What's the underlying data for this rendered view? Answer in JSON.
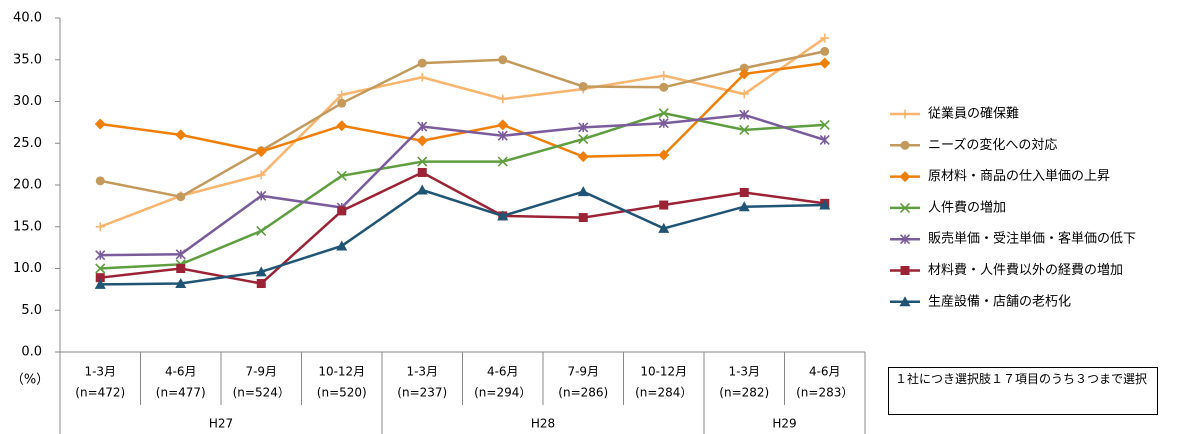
{
  "chart_data": {
    "type": "line",
    "unit_label": "（%）",
    "categories": [
      "1-3月",
      "4-6月",
      "7-9月",
      "10-12月",
      "1-3月",
      "4-6月",
      "7-9月",
      "10-12月",
      "1-3月",
      "4-6月"
    ],
    "category_notes": [
      "(n=472)",
      "(n=477)",
      "(n=524）",
      "(n=520)",
      "(n=237)",
      "(n=294）",
      "(n=286)",
      "(n=284）",
      "(n=282)",
      "(n=283）"
    ],
    "groups": [
      {
        "label": "H27",
        "from": 0,
        "to": 3
      },
      {
        "label": "H28",
        "from": 4,
        "to": 7
      },
      {
        "label": "H29",
        "from": 8,
        "to": 9
      }
    ],
    "ylim": [
      0,
      40
    ],
    "yticks": [
      {
        "value": 0,
        "label": "0.0"
      },
      {
        "value": 5,
        "label": "5.0"
      },
      {
        "value": 10,
        "label": "10.0"
      },
      {
        "value": 15,
        "label": "15.0"
      },
      {
        "value": 20,
        "label": "20.0"
      },
      {
        "value": 25,
        "label": "25.0"
      },
      {
        "value": 30,
        "label": "30.0"
      },
      {
        "value": 35,
        "label": "35.0"
      },
      {
        "value": 40,
        "label": "40.0"
      }
    ],
    "grid": false,
    "legend": "right",
    "series": [
      {
        "name": "従業員の確保難",
        "color": "#f9b46e",
        "marker": "plus",
        "values": [
          15.0,
          18.7,
          21.2,
          30.8,
          32.9,
          30.3,
          31.5,
          33.1,
          30.9,
          37.6
        ]
      },
      {
        "name": "ニーズの変化への対応",
        "color": "#c49a5c",
        "marker": "circle",
        "values": [
          20.5,
          18.6,
          24.1,
          29.8,
          34.6,
          35.0,
          31.8,
          31.7,
          34.0,
          36.0
        ]
      },
      {
        "name": "原材料・商品の仕入単価の上昇",
        "color": "#f07f09",
        "marker": "diamond",
        "values": [
          27.3,
          26.0,
          24.0,
          27.1,
          25.3,
          27.2,
          23.4,
          23.6,
          33.3,
          34.6
        ]
      },
      {
        "name": "人件費の増加",
        "color": "#5e9e3e",
        "marker": "x",
        "values": [
          10.0,
          10.5,
          14.5,
          21.1,
          22.8,
          22.8,
          25.5,
          28.6,
          26.6,
          27.2
        ]
      },
      {
        "name": "販売単価・受注単価・客単価の低下",
        "color": "#7a5c9c",
        "marker": "asterisk",
        "values": [
          11.6,
          11.7,
          18.7,
          17.3,
          27.0,
          25.9,
          26.9,
          27.4,
          28.4,
          25.4
        ]
      },
      {
        "name": "材料費・人件費以外の経費の増加",
        "color": "#9b2335",
        "marker": "square",
        "values": [
          8.9,
          10.0,
          8.2,
          16.9,
          21.5,
          16.3,
          16.1,
          17.6,
          19.1,
          17.8
        ]
      },
      {
        "name": "生産設備・店舗の老朽化",
        "color": "#1f5475",
        "marker": "triangle",
        "values": [
          8.1,
          8.2,
          9.6,
          12.7,
          19.4,
          16.3,
          19.2,
          14.8,
          17.4,
          17.6
        ]
      }
    ],
    "note": "１社につき選択肢１７項目のうち３つまで選択"
  }
}
